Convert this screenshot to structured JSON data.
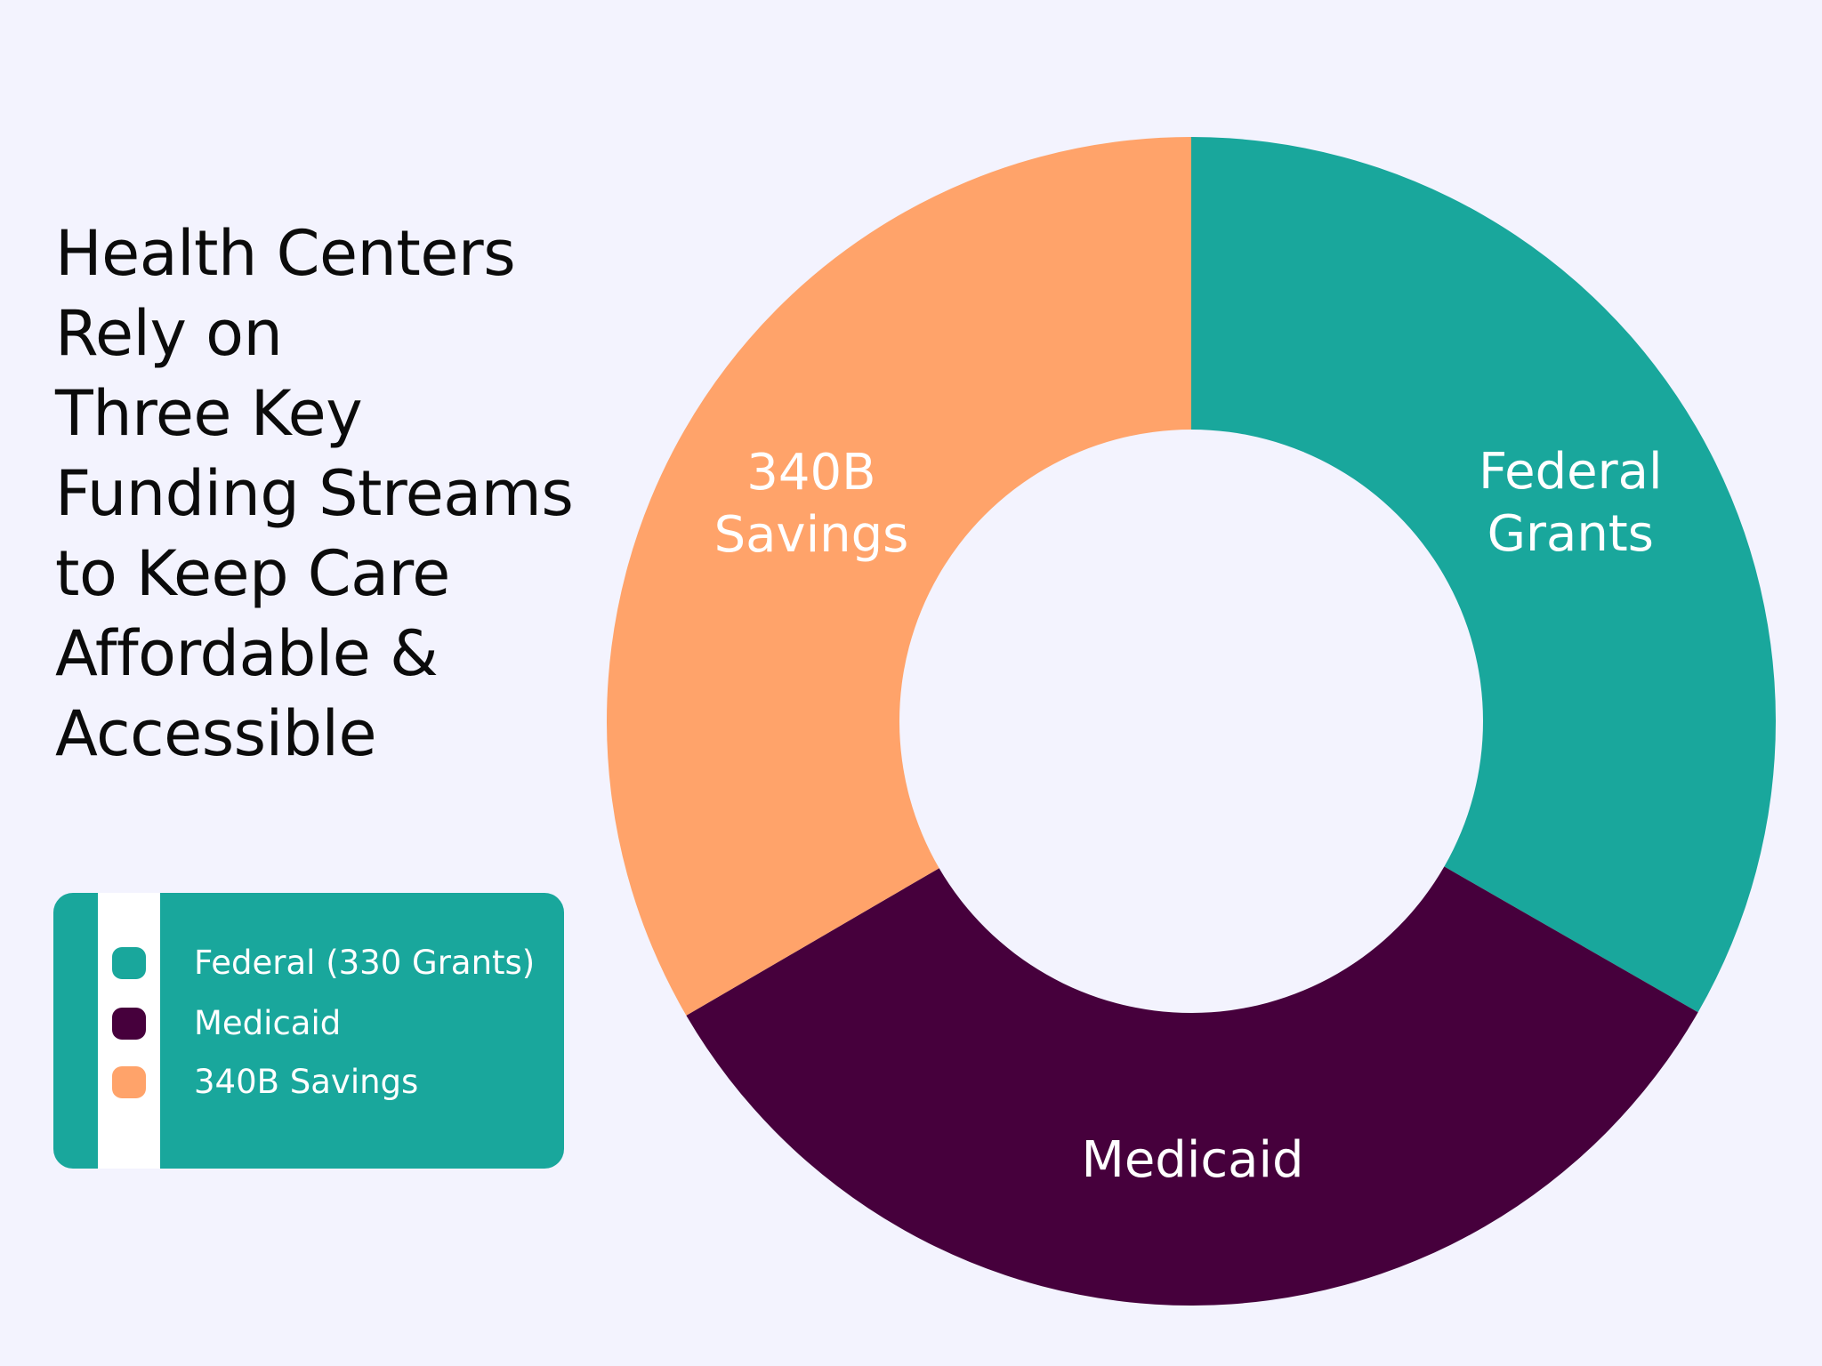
{
  "title_lines": [
    "Health Centers",
    "Rely on",
    "Three Key",
    "Funding Streams",
    "to Keep Care",
    "Affordable &",
    "Accessible"
  ],
  "legend": {
    "items": [
      {
        "label": "Federal (330 Grants)",
        "color": "#19a79c"
      },
      {
        "label": "Medicaid",
        "color": "#46003c"
      },
      {
        "label": "340B Savings",
        "color": "#ffa36a"
      }
    ],
    "background": "#19a79c"
  },
  "chart_data": {
    "type": "pie",
    "variant": "donut",
    "start": "12 o'clock",
    "direction": "clockwise",
    "slices": [
      {
        "name": "Federal Grants",
        "label_lines": [
          "Federal",
          "Grants"
        ],
        "value": 33.3,
        "color": "#19a79c"
      },
      {
        "name": "Medicaid",
        "label_lines": [
          "Medicaid"
        ],
        "value": 33.3,
        "color": "#46003c"
      },
      {
        "name": "340B Savings",
        "label_lines": [
          "340B",
          "Savings"
        ],
        "value": 33.4,
        "color": "#ffa36a"
      }
    ]
  }
}
